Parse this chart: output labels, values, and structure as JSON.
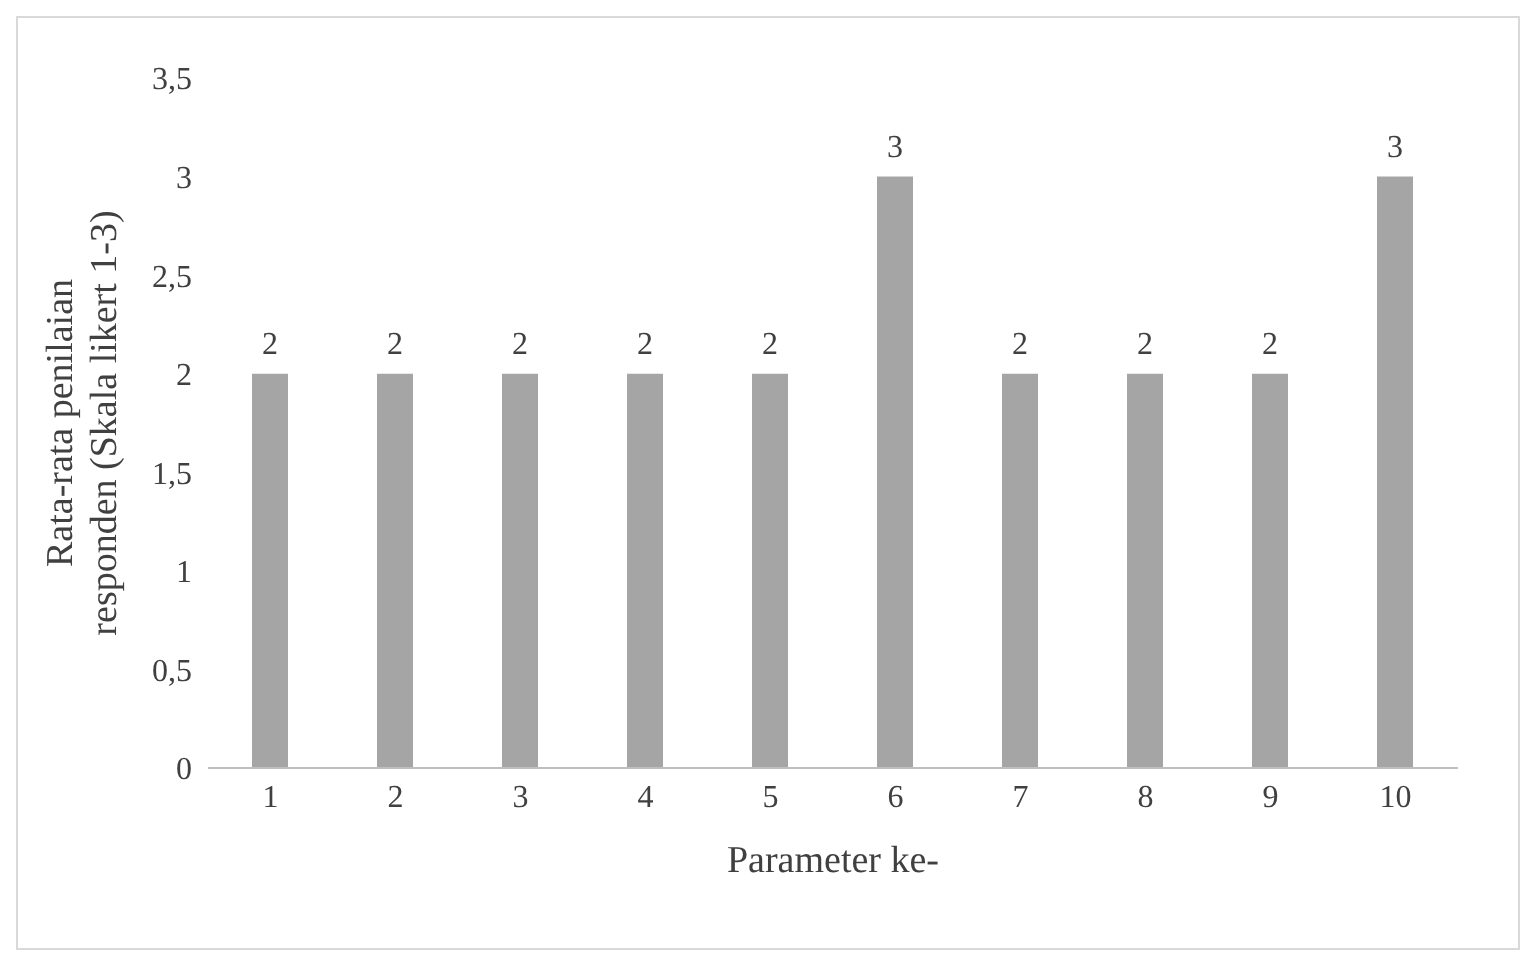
{
  "chart_data": {
    "type": "bar",
    "xlabel": "Parameter ke-",
    "ylabel": "Rata-rata penilaian responden (Skala likert 1-3)",
    "categories": [
      "1",
      "2",
      "3",
      "4",
      "5",
      "6",
      "7",
      "8",
      "9",
      "10"
    ],
    "values": [
      2,
      2,
      2,
      2,
      2,
      3,
      2,
      2,
      2,
      3
    ],
    "color": "#a5a5a5",
    "ylim": [
      0,
      3.5
    ],
    "yticks": [
      0,
      {
        "value": 0.5,
        "label": "0,5"
      },
      1,
      {
        "value": 1.5,
        "label": "1,5"
      },
      2,
      {
        "value": 2.5,
        "label": "2,5"
      },
      3,
      {
        "value": 3.5,
        "label": "3,5"
      }
    ],
    "grid": false,
    "data_labels": true
  }
}
